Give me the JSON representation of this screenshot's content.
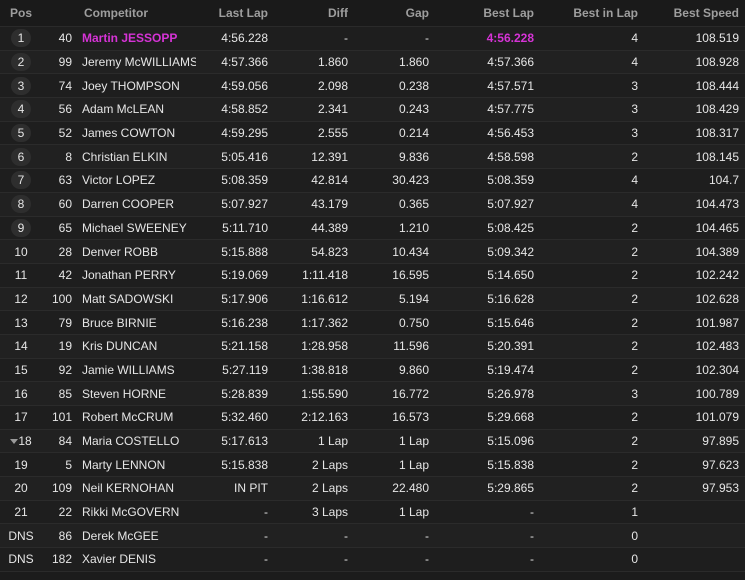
{
  "headers": {
    "pos": "Pos",
    "competitor": "Competitor",
    "last_lap": "Last Lap",
    "diff": "Diff",
    "gap": "Gap",
    "best_lap": "Best Lap",
    "best_in_lap": "Best in Lap",
    "best_speed": "Best Speed"
  },
  "rows": [
    {
      "pos": "1",
      "num": "40",
      "name": "Martin JESSOPP",
      "last": "4:56.228",
      "diff": "-",
      "gap": "-",
      "best": "4:56.228",
      "bil": "4",
      "speed": "108.519"
    },
    {
      "pos": "2",
      "num": "99",
      "name": "Jeremy McWILLIAMS",
      "last": "4:57.366",
      "diff": "1.860",
      "gap": "1.860",
      "best": "4:57.366",
      "bil": "4",
      "speed": "108.928"
    },
    {
      "pos": "3",
      "num": "74",
      "name": "Joey THOMPSON",
      "last": "4:59.056",
      "diff": "2.098",
      "gap": "0.238",
      "best": "4:57.571",
      "bil": "3",
      "speed": "108.444"
    },
    {
      "pos": "4",
      "num": "56",
      "name": "Adam McLEAN",
      "last": "4:58.852",
      "diff": "2.341",
      "gap": "0.243",
      "best": "4:57.775",
      "bil": "3",
      "speed": "108.429"
    },
    {
      "pos": "5",
      "num": "52",
      "name": "James COWTON",
      "last": "4:59.295",
      "diff": "2.555",
      "gap": "0.214",
      "best": "4:56.453",
      "bil": "3",
      "speed": "108.317"
    },
    {
      "pos": "6",
      "num": "8",
      "name": "Christian ELKIN",
      "last": "5:05.416",
      "diff": "12.391",
      "gap": "9.836",
      "best": "4:58.598",
      "bil": "2",
      "speed": "108.145"
    },
    {
      "pos": "7",
      "num": "63",
      "name": "Victor LOPEZ",
      "last": "5:08.359",
      "diff": "42.814",
      "gap": "30.423",
      "best": "5:08.359",
      "bil": "4",
      "speed": "104.7"
    },
    {
      "pos": "8",
      "num": "60",
      "name": "Darren COOPER",
      "last": "5:07.927",
      "diff": "43.179",
      "gap": "0.365",
      "best": "5:07.927",
      "bil": "4",
      "speed": "104.473"
    },
    {
      "pos": "9",
      "num": "65",
      "name": "Michael SWEENEY",
      "last": "5:11.710",
      "diff": "44.389",
      "gap": "1.210",
      "best": "5:08.425",
      "bil": "2",
      "speed": "104.465"
    },
    {
      "pos": "10",
      "num": "28",
      "name": "Denver ROBB",
      "last": "5:15.888",
      "diff": "54.823",
      "gap": "10.434",
      "best": "5:09.342",
      "bil": "2",
      "speed": "104.389"
    },
    {
      "pos": "11",
      "num": "42",
      "name": "Jonathan PERRY",
      "last": "5:19.069",
      "diff": "1:11.418",
      "gap": "16.595",
      "best": "5:14.650",
      "bil": "2",
      "speed": "102.242"
    },
    {
      "pos": "12",
      "num": "100",
      "name": "Matt SADOWSKI",
      "last": "5:17.906",
      "diff": "1:16.612",
      "gap": "5.194",
      "best": "5:16.628",
      "bil": "2",
      "speed": "102.628"
    },
    {
      "pos": "13",
      "num": "79",
      "name": "Bruce BIRNIE",
      "last": "5:16.238",
      "diff": "1:17.362",
      "gap": "0.750",
      "best": "5:15.646",
      "bil": "2",
      "speed": "101.987"
    },
    {
      "pos": "14",
      "num": "19",
      "name": "Kris DUNCAN",
      "last": "5:21.158",
      "diff": "1:28.958",
      "gap": "11.596",
      "best": "5:20.391",
      "bil": "2",
      "speed": "102.483"
    },
    {
      "pos": "15",
      "num": "92",
      "name": "Jamie WILLIAMS",
      "last": "5:27.119",
      "diff": "1:38.818",
      "gap": "9.860",
      "best": "5:19.474",
      "bil": "2",
      "speed": "102.304"
    },
    {
      "pos": "16",
      "num": "85",
      "name": "Steven HORNE",
      "last": "5:28.839",
      "diff": "1:55.590",
      "gap": "16.772",
      "best": "5:26.978",
      "bil": "3",
      "speed": "100.789"
    },
    {
      "pos": "17",
      "num": "101",
      "name": "Robert McCRUM",
      "last": "5:32.460",
      "diff": "2:12.163",
      "gap": "16.573",
      "best": "5:29.668",
      "bil": "2",
      "speed": "101.079"
    },
    {
      "pos": "18",
      "num": "84",
      "name": "Maria COSTELLO",
      "last": "5:17.613",
      "diff": "1 Lap",
      "gap": "1 Lap",
      "best": "5:15.096",
      "bil": "2",
      "speed": "97.895"
    },
    {
      "pos": "19",
      "num": "5",
      "name": "Marty LENNON",
      "last": "5:15.838",
      "diff": "2 Laps",
      "gap": "1 Lap",
      "best": "5:15.838",
      "bil": "2",
      "speed": "97.623"
    },
    {
      "pos": "20",
      "num": "109",
      "name": "Neil KERNOHAN",
      "last": "IN PIT",
      "diff": "2 Laps",
      "gap": "22.480",
      "best": "5:29.865",
      "bil": "2",
      "speed": "97.953"
    },
    {
      "pos": "21",
      "num": "22",
      "name": "Rikki McGOVERN",
      "last": "-",
      "diff": "3 Laps",
      "gap": "1 Lap",
      "best": "-",
      "bil": "1",
      "speed": ""
    },
    {
      "pos": "DNS",
      "num": "86",
      "name": "Derek McGEE",
      "last": "-",
      "diff": "-",
      "gap": "-",
      "best": "-",
      "bil": "0",
      "speed": ""
    },
    {
      "pos": "DNS",
      "num": "182",
      "name": "Xavier DENIS",
      "last": "-",
      "diff": "-",
      "gap": "-",
      "best": "-",
      "bil": "0",
      "speed": ""
    }
  ],
  "colors": {
    "leader_highlight": "#d633d6",
    "background": "#1c1c1c",
    "header_text": "#9e9e9e"
  },
  "icons": {
    "position_lost": "arrow-down-icon"
  }
}
